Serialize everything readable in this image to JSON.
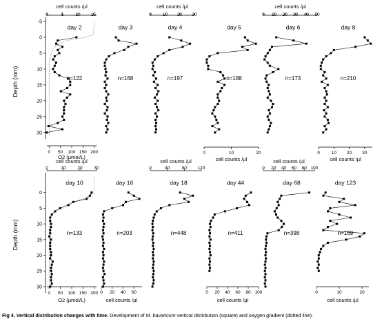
{
  "figure": {
    "y_axis_label": "Depth (mm)",
    "top_axis_label": "cell counts /µl",
    "oxygen_axis_label": "O2 (µmol/L)"
  },
  "caption": {
    "label": "Fig 4. Vertical distribution changes with time.",
    "text_before": "Development of",
    "species": "M. bavaricum",
    "text_after": "vertical distribution (square) and oxygen gradient (dotted line)."
  },
  "chart_data": [
    {
      "type": "line",
      "title": "day 2",
      "n_label": "n=122",
      "xlabel": "cell counts /µl",
      "xlim": [
        0,
        16
      ],
      "xticks": [
        0,
        5,
        10,
        15
      ],
      "ylabel": "Depth (mm)",
      "ylim": [
        -5,
        32
      ],
      "yticks": [
        -5,
        0,
        5,
        10,
        15,
        20,
        25,
        30
      ],
      "y_inverted": true,
      "cells": {
        "depth": [
          0,
          1,
          2,
          3,
          4,
          5,
          6,
          7,
          8,
          9,
          10,
          11,
          12,
          13,
          14,
          15,
          16,
          17,
          18,
          19,
          20,
          21,
          22,
          23,
          24,
          25,
          26,
          27,
          28,
          29,
          30
        ],
        "counts": [
          9.5,
          3.5,
          3,
          5,
          3.5,
          4,
          2.5,
          2,
          3,
          2.5,
          2,
          2.5,
          4,
          7,
          7.5,
          7.5,
          6.5,
          4.5,
          7.5,
          6.5,
          5.5,
          6,
          5.5,
          5.5,
          5.5,
          5,
          5.5,
          3.5,
          0.5,
          5,
          0
        ]
      },
      "oxygen": {
        "xlabel": "O2 (µmol/L)",
        "xlim": [
          -10,
          210
        ],
        "xticks": [
          0,
          50,
          100,
          150,
          200
        ],
        "depth": [
          -5,
          -4,
          -3,
          -2,
          -1,
          0,
          1,
          2,
          3,
          4,
          5,
          6,
          7,
          8,
          9,
          10,
          12,
          16,
          20,
          24,
          28,
          30,
          31
        ],
        "values": [
          200,
          200,
          200,
          195,
          198,
          160,
          80,
          45,
          25,
          15,
          10,
          5,
          2,
          0,
          0,
          0,
          0,
          0,
          0,
          0,
          0,
          0,
          0
        ]
      }
    },
    {
      "type": "line",
      "title": "day 3",
      "n_label": "n=168",
      "xlabel": "cell counts /µl",
      "xlim": [
        0,
        30
      ],
      "xticks": [
        0,
        10,
        20,
        30
      ],
      "depth": [
        0,
        1,
        2,
        3,
        4,
        5,
        6,
        7,
        8,
        9,
        10,
        11,
        12,
        13,
        14,
        15,
        16,
        17,
        18,
        19,
        20,
        21,
        22,
        23,
        24,
        25,
        26,
        27,
        28,
        29,
        30
      ],
      "counts": [
        10,
        12,
        25,
        19,
        16,
        9,
        5,
        3,
        2,
        2,
        2.5,
        3,
        2.5,
        4,
        2,
        3,
        2,
        3,
        4.5,
        3,
        3.5,
        2,
        4,
        3.5,
        2,
        4,
        3.5,
        4.5,
        3,
        4,
        3
      ]
    },
    {
      "type": "line",
      "title": "day 4",
      "n_label": "n=197",
      "xlabel": "cell counts /µl",
      "xlim": [
        0,
        30
      ],
      "xticks": [
        0,
        10,
        20,
        30
      ],
      "depth": [
        0,
        1,
        2,
        3,
        4,
        5,
        6,
        7,
        8,
        9,
        10,
        11,
        12,
        13,
        14,
        15,
        16,
        17,
        18,
        19,
        20,
        21,
        22,
        23,
        24,
        25,
        26,
        27,
        28,
        29,
        30
      ],
      "counts": [
        13,
        21,
        27,
        22,
        13,
        9,
        5,
        3,
        1.5,
        2,
        1.5,
        3,
        2,
        4,
        2.5,
        5,
        3.5,
        5.5,
        4.5,
        3,
        5,
        3.5,
        4.5,
        5.5,
        3.5,
        4.5,
        3.5,
        4,
        3.5,
        4,
        3.5
      ]
    },
    {
      "type": "line",
      "title": "day 5",
      "n_label": "n=188",
      "xlabel": "cell counts /µl",
      "xlim": [
        0,
        20
      ],
      "xticks": [
        0,
        10,
        20
      ],
      "depth": [
        0,
        1,
        2,
        3,
        4,
        5,
        6,
        7,
        8,
        9,
        10,
        11,
        12,
        13,
        14,
        15,
        16,
        17,
        18,
        19,
        20,
        21,
        22,
        23,
        24,
        25,
        26,
        27,
        28,
        29,
        30
      ],
      "counts": [
        15,
        16,
        19,
        14,
        16,
        5,
        2,
        1,
        1,
        1.5,
        1.5,
        6,
        7,
        7.5,
        5,
        7.5,
        6.5,
        6,
        5,
        5,
        5.5,
        5,
        4,
        3.5,
        3,
        4,
        4.5,
        5,
        3,
        5.5,
        4
      ]
    },
    {
      "type": "line",
      "title": "day 6",
      "n_label": "n=173",
      "xlabel": "cell counts /µl",
      "xlim": [
        0,
        50
      ],
      "xticks": [
        0,
        10,
        20,
        30,
        40,
        50
      ],
      "depth": [
        0,
        1,
        2,
        3,
        4,
        5,
        6,
        7,
        8,
        9,
        10,
        11,
        12,
        13,
        14,
        15,
        16,
        17,
        18,
        19,
        20,
        21,
        22,
        23,
        24,
        25,
        26,
        27,
        28,
        29,
        30
      ],
      "counts": [
        12,
        28,
        40,
        8,
        6,
        4,
        2,
        1,
        4,
        6,
        14,
        9,
        3,
        2,
        3,
        5,
        4,
        5,
        6,
        4,
        7,
        9,
        8,
        5,
        6,
        4,
        5,
        7,
        6,
        5,
        4
      ]
    },
    {
      "type": "line",
      "title": "day 8",
      "n_label": "n=210",
      "xlabel": "cell counts /µl",
      "xlim": [
        0,
        35
      ],
      "xticks": [
        0,
        10,
        20,
        30
      ],
      "depth": [
        0,
        1,
        2,
        3,
        4,
        5,
        6,
        7,
        8,
        9,
        10,
        11,
        12,
        13,
        14,
        15,
        16,
        17,
        18,
        19,
        20,
        21,
        22,
        23,
        24,
        25,
        26,
        27,
        28,
        29,
        30
      ],
      "counts": [
        30,
        32,
        34,
        24,
        10,
        8,
        5,
        3,
        2,
        1.5,
        1.5,
        4,
        3,
        5,
        2,
        6,
        4,
        5,
        5.5,
        4,
        5,
        4,
        6,
        3.5,
        5,
        4,
        6,
        6.5,
        4,
        5,
        3
      ]
    },
    {
      "type": "line",
      "title": "day 10",
      "n_label": "n=133",
      "xlabel": "cell counts /µl",
      "xlim": [
        0,
        30
      ],
      "xticks": [
        0,
        10,
        20,
        30
      ],
      "ylabel": "Depth (mm)",
      "ylim": [
        -5,
        32
      ],
      "yticks": [
        0,
        5,
        10,
        15,
        20,
        25,
        30
      ],
      "y_inverted": true,
      "cells": {
        "depth": [
          0,
          1,
          2,
          3,
          4,
          5,
          6,
          7,
          8,
          9,
          10,
          11,
          12,
          13,
          14,
          15,
          16,
          17,
          18,
          19,
          20,
          21,
          22,
          23,
          24,
          25,
          26,
          27,
          28,
          29,
          30
        ],
        "counts": [
          27,
          26,
          24,
          16,
          13,
          8,
          5,
          3,
          2,
          2,
          2.5,
          2.5,
          2,
          2,
          1.5,
          2.5,
          2,
          2,
          2,
          2.5,
          2.5,
          2,
          3.5,
          3,
          2.5,
          2.5,
          3,
          2.5,
          2.5,
          3,
          2
        ]
      },
      "oxygen": {
        "xlabel": "O2 (µmol/L)",
        "xlim": [
          -10,
          210
        ],
        "xticks": [
          0,
          50,
          100,
          150,
          200
        ],
        "depth": [
          -5,
          -3,
          -1,
          0,
          1,
          2,
          3,
          4,
          5,
          6,
          7,
          8,
          10,
          14,
          20,
          26,
          30
        ],
        "values": [
          200,
          200,
          198,
          195,
          180,
          150,
          110,
          75,
          45,
          25,
          12,
          5,
          0,
          0,
          0,
          0,
          0
        ]
      }
    },
    {
      "type": "line",
      "title": "day 16",
      "n_label": "n=203",
      "xlabel": "cell counts /µl",
      "xlim": [
        0,
        75
      ],
      "xticks": [
        0,
        20,
        40,
        60
      ],
      "depth": [
        0,
        1,
        2,
        3,
        4,
        5,
        6,
        7,
        8,
        9,
        10,
        11,
        12,
        13,
        14,
        15,
        16,
        17,
        18,
        19,
        20,
        21,
        22,
        23,
        24,
        25,
        26,
        27,
        28,
        29,
        30
      ],
      "counts": [
        50,
        60,
        70,
        45,
        40,
        20,
        5,
        3,
        4,
        3,
        5,
        4,
        3,
        4,
        2,
        3,
        4,
        3,
        5,
        3,
        4,
        3,
        5,
        4,
        3,
        4,
        6,
        3,
        4,
        5,
        3
      ]
    },
    {
      "type": "line",
      "title": "day 18",
      "n_label": "n=448",
      "xlabel": "cell counts /µl",
      "xlim": [
        0,
        120
      ],
      "xticks": [
        0,
        40,
        80,
        120
      ],
      "depth": [
        0,
        1,
        2,
        3,
        4,
        5,
        6,
        7,
        8,
        9,
        10,
        11,
        12,
        13,
        14,
        15,
        16,
        17,
        18,
        19,
        20,
        21,
        22,
        23,
        24,
        25,
        26,
        27,
        28,
        29,
        30
      ],
      "counts": [
        70,
        100,
        80,
        90,
        45,
        25,
        15,
        10,
        8,
        6,
        5,
        6,
        5,
        7,
        6,
        5,
        7,
        6,
        8,
        6,
        7,
        6,
        8,
        7,
        6,
        8,
        7,
        6,
        8,
        7,
        5
      ]
    },
    {
      "type": "line",
      "title": "day 44",
      "n_label": "n=411",
      "xlabel": "cell counts /µl",
      "xlim": [
        0,
        100
      ],
      "xticks": [
        0,
        20,
        40,
        60,
        80,
        100
      ],
      "depth": [
        0,
        1,
        2,
        3,
        4,
        5,
        6,
        7,
        8,
        9,
        10,
        11,
        12,
        13,
        14,
        15,
        16,
        17,
        18,
        19,
        20,
        21,
        22,
        23,
        24,
        25
      ],
      "counts": [
        85,
        75,
        72,
        78,
        82,
        58,
        35,
        15,
        12,
        8,
        6,
        7,
        5,
        6,
        5,
        7,
        5,
        6,
        5,
        6,
        7,
        5,
        6,
        5,
        6,
        5
      ]
    },
    {
      "type": "line",
      "title": "day 68",
      "n_label": "n=398",
      "xlabel": "cell counts /µl",
      "xlim": [
        0,
        100
      ],
      "xticks": [
        0,
        20,
        40,
        60,
        80,
        100
      ],
      "depth": [
        0,
        1,
        2,
        3,
        4,
        5,
        6,
        7,
        8,
        9,
        10,
        11,
        12,
        13,
        14,
        15,
        16,
        17,
        18,
        19,
        20,
        21,
        22,
        23,
        24,
        25,
        26,
        27,
        28,
        29,
        30
      ],
      "counts": [
        90,
        35,
        32,
        28,
        30,
        26,
        22,
        25,
        28,
        35,
        40,
        36,
        30,
        8,
        6,
        5,
        6,
        5,
        4,
        5,
        4,
        5,
        4,
        3,
        4,
        3,
        4,
        3,
        4,
        3,
        4
      ]
    },
    {
      "type": "line",
      "title": "day 123",
      "n_label": "n=169",
      "xlabel": "cell counts /µl",
      "xlim": [
        0,
        23
      ],
      "xticks": [
        0,
        10,
        20
      ],
      "depth": [
        0,
        1,
        2,
        3,
        4,
        5,
        6,
        7,
        8,
        9,
        10,
        11,
        12,
        13,
        14,
        15,
        16,
        17,
        18,
        19,
        20,
        21,
        22,
        23,
        24,
        25
      ],
      "counts": [
        4,
        3,
        12,
        10,
        17,
        6,
        5,
        10,
        15,
        6,
        9,
        5,
        3,
        21,
        19,
        13,
        5,
        3,
        2,
        1.5,
        1,
        1,
        0.5,
        1,
        0.5,
        1
      ]
    }
  ]
}
